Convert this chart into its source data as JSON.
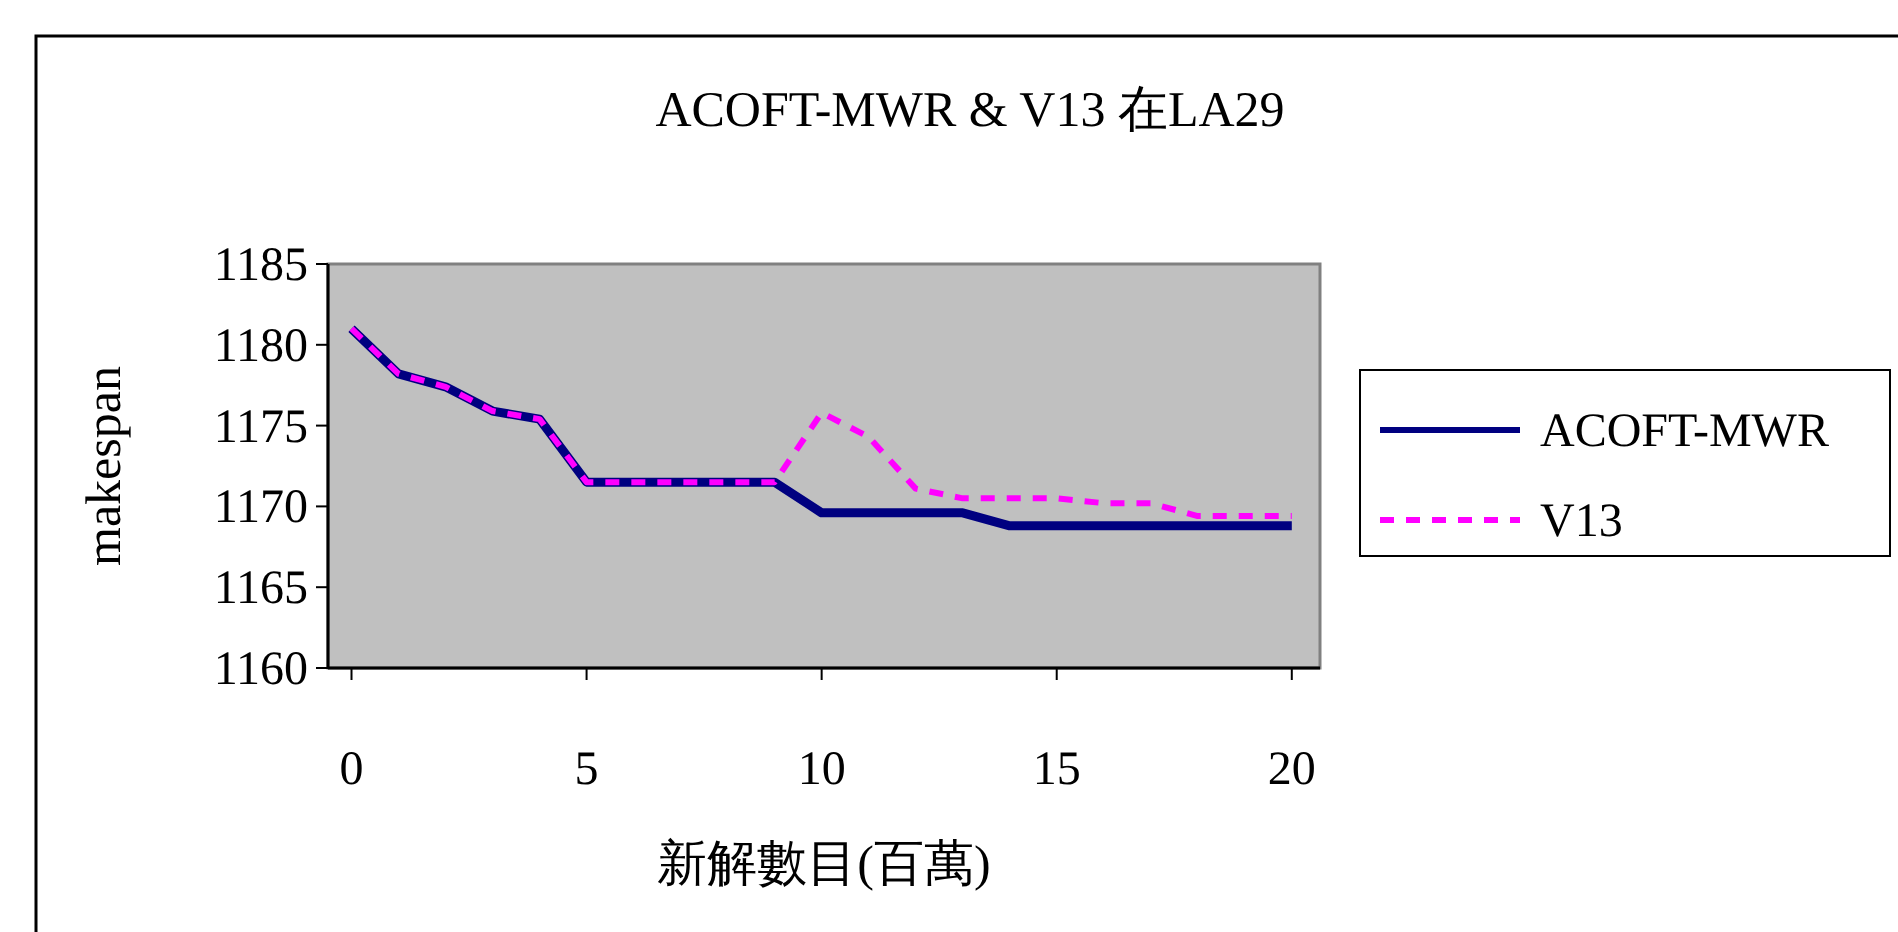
{
  "chart_data": {
    "type": "line",
    "title": "ACOFT-MWR & V13 在LA29",
    "xlabel": "新解數目(百萬)",
    "ylabel": "makespan",
    "x": [
      0,
      1,
      2,
      3,
      4,
      5,
      6,
      7,
      8,
      9,
      10,
      11,
      12,
      13,
      14,
      15,
      16,
      17,
      18,
      19,
      20
    ],
    "xlim": [
      -0.5,
      20.6
    ],
    "xticks": [
      0,
      5,
      10,
      15,
      20
    ],
    "ylim": [
      1160,
      1185
    ],
    "yticks": [
      1160,
      1165,
      1170,
      1175,
      1180,
      1185
    ],
    "grid": false,
    "legend": "right",
    "marker": "none",
    "series": [
      {
        "name": "ACOFT-MWR",
        "color": "#000080",
        "line_style": "solid",
        "values": [
          1181.0,
          1178.2,
          1177.4,
          1175.9,
          1175.4,
          1171.5,
          1171.5,
          1171.5,
          1171.5,
          1171.5,
          1169.6,
          1169.6,
          1169.6,
          1169.6,
          1168.8,
          1168.8,
          1168.8,
          1168.8,
          1168.8,
          1168.8,
          1168.8
        ]
      },
      {
        "name": "V13",
        "color": "#ff00ff",
        "line_style": "dashed",
        "values": [
          1181.0,
          1178.2,
          1177.4,
          1175.9,
          1175.4,
          1171.5,
          1171.5,
          1171.5,
          1171.5,
          1171.5,
          1175.8,
          1174.3,
          1171.1,
          1170.5,
          1170.5,
          1170.5,
          1170.2,
          1170.2,
          1169.4,
          1169.4,
          1169.4
        ]
      }
    ]
  }
}
